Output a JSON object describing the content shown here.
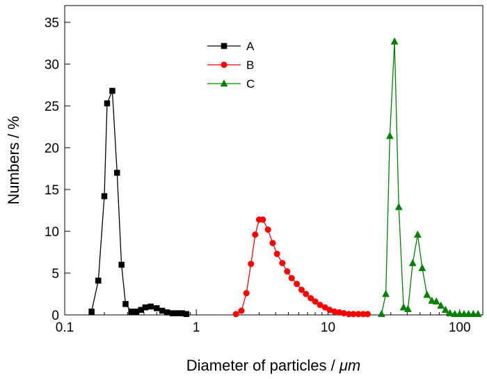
{
  "chart_data": {
    "type": "line",
    "title": "",
    "xlabel": "Diameter of particles / ",
    "xlabel_unit": "μm",
    "ylabel": "Numbers / %",
    "xscale": "log",
    "xlim": [
      0.1,
      150
    ],
    "ylim": [
      0,
      37
    ],
    "xticks": [
      {
        "value": 0.1,
        "label": "0.1"
      },
      {
        "value": 1,
        "label": "1"
      },
      {
        "value": 10,
        "label": "10"
      },
      {
        "value": 100,
        "label": "100"
      }
    ],
    "yticks": [
      {
        "value": 0,
        "label": "0"
      },
      {
        "value": 5,
        "label": "5"
      },
      {
        "value": 10,
        "label": "10"
      },
      {
        "value": 15,
        "label": "15"
      },
      {
        "value": 20,
        "label": "20"
      },
      {
        "value": 25,
        "label": "25"
      },
      {
        "value": 30,
        "label": "30"
      },
      {
        "value": 35,
        "label": "35"
      }
    ],
    "grid": false,
    "legend": "top-center",
    "series": [
      {
        "name": "A",
        "color": "#000000",
        "marker": "square",
        "x": [
          0.16,
          0.18,
          0.2,
          0.21,
          0.23,
          0.25,
          0.27,
          0.29,
          0.32,
          0.35,
          0.38,
          0.41,
          0.45,
          0.5,
          0.55,
          0.6,
          0.66,
          0.72,
          0.78,
          0.84
        ],
        "y": [
          0.4,
          4.1,
          14.2,
          25.3,
          26.8,
          17.0,
          6.0,
          1.3,
          0.4,
          0.4,
          0.6,
          0.9,
          1.0,
          0.8,
          0.5,
          0.3,
          0.2,
          0.2,
          0.2,
          0.1
        ]
      },
      {
        "name": "B",
        "color": "#ff0000",
        "marker": "circle",
        "x": [
          2.0,
          2.2,
          2.4,
          2.6,
          2.8,
          3.0,
          3.2,
          3.5,
          3.8,
          4.1,
          4.5,
          4.9,
          5.3,
          5.8,
          6.3,
          6.8,
          7.4,
          8.0,
          8.7,
          9.5,
          10.3,
          11.2,
          12.2,
          13.2,
          14.4,
          15.6,
          17.0,
          18.5,
          20.0
        ],
        "y": [
          0.1,
          0.5,
          2.6,
          6.1,
          9.6,
          11.4,
          11.4,
          10.2,
          8.6,
          7.3,
          6.2,
          5.2,
          4.4,
          3.7,
          3.0,
          2.5,
          2.0,
          1.6,
          1.2,
          0.9,
          0.6,
          0.4,
          0.3,
          0.2,
          0.1,
          0.1,
          0.1,
          0.1,
          0.1
        ]
      },
      {
        "name": "C",
        "color": "#008000",
        "marker": "triangle",
        "x": [
          25.5,
          27.5,
          29.5,
          32.0,
          34.5,
          37.5,
          40.5,
          44.0,
          48.0,
          52.0,
          56.5,
          61.5,
          66.5,
          72.0,
          78.0,
          84.5,
          92.0,
          100.0,
          108.0,
          117.0,
          127.0,
          138.0
        ],
        "y": [
          0.1,
          2.5,
          21.4,
          32.7,
          12.9,
          0.9,
          0.7,
          6.2,
          9.6,
          5.6,
          2.4,
          1.7,
          1.6,
          1.1,
          0.6,
          0.2,
          0.1,
          0.1,
          0.1,
          0.1,
          0.1,
          0.1
        ]
      }
    ]
  }
}
